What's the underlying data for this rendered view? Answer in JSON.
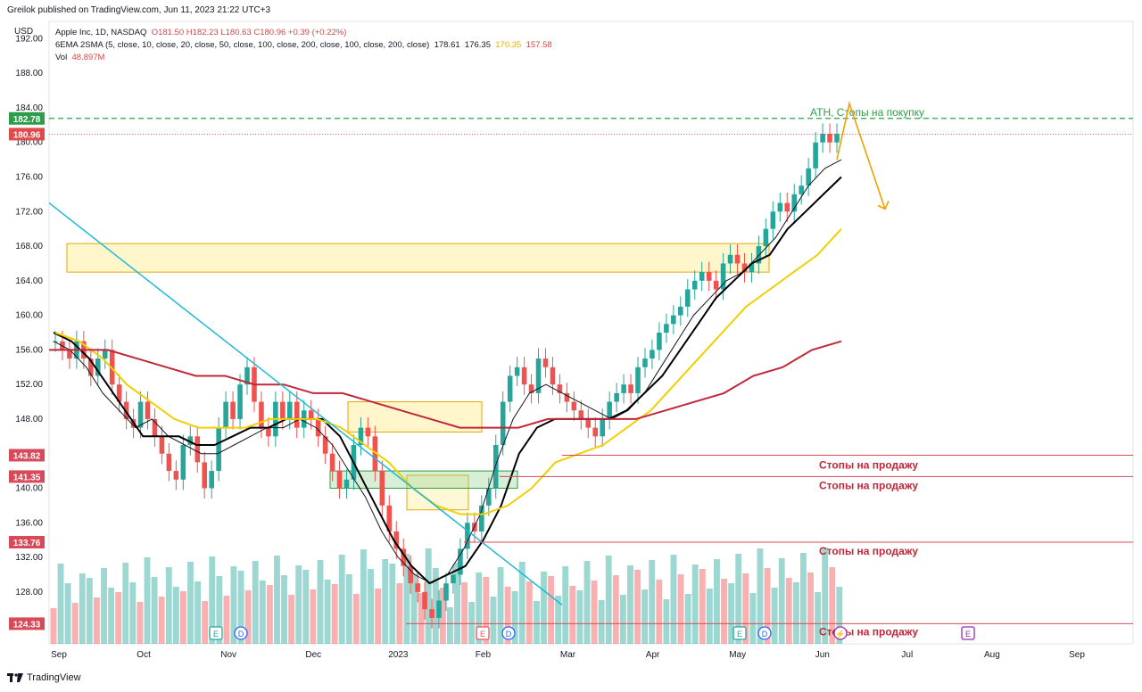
{
  "header": {
    "published": "Greilok published on TradingView.com, Jun 11, 2023 21:22 UTC+3",
    "symbol_line_prefix": "Apple Inc, 1D, NASDAQ",
    "ohlc": "O181.50  H182.23  L180.63  C180.96  +0.39 (+0.22%)",
    "ma_line_prefix": "6EMA 2SMA (5, close, 10, close, 20, close, 50, close, 100, close, 200, close, 100, close, 200, close)",
    "ma_v1": "178.61",
    "ma_v2": "176.35",
    "ma_v3": "170.35",
    "ma_v4": "157.58",
    "vol_label": "Vol",
    "vol_value": "48.897M",
    "currency": "USD"
  },
  "footer": {
    "brand": "TradingView"
  },
  "chart_data": {
    "type": "line",
    "title": "Apple Inc, 1D, NASDAQ",
    "ylim": [
      122,
      194
    ],
    "y_ticks": [
      "192.00",
      "188.00",
      "184.00",
      "180.00",
      "176.00",
      "172.00",
      "168.00",
      "164.00",
      "160.00",
      "156.00",
      "152.00",
      "148.00",
      "144.00",
      "140.00",
      "136.00",
      "132.00",
      "128.00"
    ],
    "x_ticks": [
      "Sep",
      "Oct",
      "Nov",
      "Dec",
      "2023",
      "Feb",
      "Mar",
      "Apr",
      "May",
      "Jun",
      "Jul",
      "Aug",
      "Sep"
    ],
    "price_tags": [
      {
        "label": "182.78",
        "color": "#2e9d4a"
      },
      {
        "label": "180.96",
        "color": "#e04a4a"
      },
      {
        "label": "143.82",
        "color": "#d84a5a"
      },
      {
        "label": "141.35",
        "color": "#d84a5a"
      },
      {
        "label": "133.76",
        "color": "#d84a5a"
      },
      {
        "label": "124.33",
        "color": "#d84a5a"
      }
    ],
    "annotations": {
      "ath": "ATH, Стопы на покупку",
      "sell_stops": [
        "Стопы на продажу",
        "Стопы на продажу",
        "Стопы на продажу",
        "Стопы на продажу"
      ]
    },
    "series": [
      {
        "name": "Close",
        "values": [
          157,
          156,
          155,
          157,
          155,
          153,
          155,
          156,
          152,
          150,
          148,
          147,
          150,
          148,
          146,
          144,
          142,
          141,
          145,
          146,
          143,
          140,
          142,
          147,
          150,
          148,
          152,
          154,
          150,
          147,
          146,
          150,
          148,
          150,
          147,
          149,
          148,
          146,
          144,
          142,
          140,
          141,
          145,
          147,
          146,
          142,
          138,
          135,
          133,
          131,
          129,
          128,
          126,
          125,
          127,
          129,
          130,
          133,
          136,
          135,
          138,
          140,
          145,
          150,
          153,
          154,
          152,
          151,
          155,
          154,
          152,
          151,
          150,
          149,
          148,
          147,
          146,
          148,
          150,
          151,
          152,
          151,
          154,
          155,
          156,
          158,
          159,
          160,
          161,
          163,
          164,
          165,
          164,
          163,
          166,
          167,
          166,
          165,
          166,
          168,
          170,
          172,
          173,
          172,
          174,
          175,
          177,
          180,
          181,
          180,
          181
        ]
      }
    ],
    "mas": [
      {
        "name": "EMA 5",
        "values": [
          157,
          156,
          154,
          151,
          149,
          147,
          148,
          146,
          145,
          144,
          144,
          145,
          146,
          147,
          147,
          148,
          147,
          145,
          142,
          139,
          135,
          132,
          130,
          129,
          130,
          133,
          137,
          143,
          148,
          151,
          152,
          151,
          150,
          149,
          148,
          149,
          151,
          154,
          157,
          160,
          162,
          164,
          165,
          167,
          169,
          172,
          175,
          177,
          178
        ]
      },
      {
        "name": "EMA 10",
        "values": [
          158,
          157,
          155,
          152,
          149,
          146,
          146,
          146,
          145,
          145,
          146,
          147,
          147,
          148,
          148,
          148,
          146,
          142,
          138,
          134,
          131,
          129,
          130,
          131,
          134,
          138,
          144,
          147,
          148,
          148,
          148,
          148,
          149,
          151,
          153,
          156,
          159,
          162,
          164,
          166,
          167,
          170,
          172,
          174,
          176
        ]
      },
      {
        "name": "EMA 50",
        "values": [
          158,
          157,
          155,
          152,
          150,
          148,
          147,
          147,
          147,
          148,
          148,
          148,
          147,
          145,
          143,
          140,
          138,
          137,
          137,
          138,
          140,
          143,
          144,
          145,
          147,
          149,
          152,
          155,
          158,
          161,
          163,
          165,
          167,
          170
        ]
      },
      {
        "name": "SMA 200",
        "values": [
          156,
          156,
          156,
          155,
          154,
          153,
          153,
          152,
          152,
          151,
          151,
          150,
          149,
          148,
          147,
          147,
          147,
          148,
          148,
          148,
          148,
          149,
          150,
          151,
          153,
          154,
          156,
          157
        ]
      }
    ]
  }
}
